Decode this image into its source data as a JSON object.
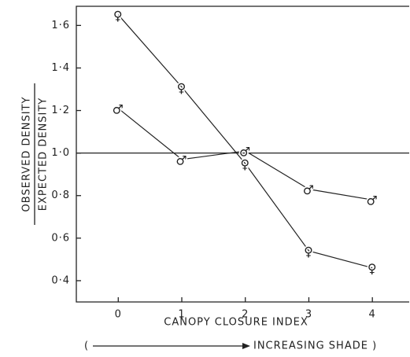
{
  "chart_data": {
    "type": "line",
    "x_label": "CANOPY CLOSURE INDEX",
    "y_label_top": "OBSERVED DENSITY",
    "y_label_bottom": "EXPECTED DENSITY",
    "annotation_open": "(",
    "annotation": "INCREASING SHADE )",
    "x": [
      0,
      1,
      2,
      3,
      4
    ],
    "series": [
      {
        "marker": "♀",
        "color": "#222",
        "values": [
          1.65,
          1.31,
          0.95,
          0.54,
          0.46
        ]
      },
      {
        "marker": "♂",
        "color": "#222",
        "values": [
          1.21,
          0.97,
          1.01,
          0.83,
          0.78
        ]
      }
    ],
    "reference_line": 1.0,
    "xlim": [
      -0.66,
      4.58
    ],
    "xticks": [
      0,
      1,
      2,
      3,
      4
    ],
    "ylim": [
      0.3,
      1.69
    ],
    "yticks": [
      {
        "value": 0.4,
        "label": "0·4"
      },
      {
        "value": 0.6,
        "label": "0·6"
      },
      {
        "value": 0.8,
        "label": "0·8"
      },
      {
        "value": 1.0,
        "label": "1·0"
      },
      {
        "value": 1.2,
        "label": "1·2"
      },
      {
        "value": 1.4,
        "label": "1·4"
      },
      {
        "value": 1.6,
        "label": "1·6"
      }
    ]
  }
}
